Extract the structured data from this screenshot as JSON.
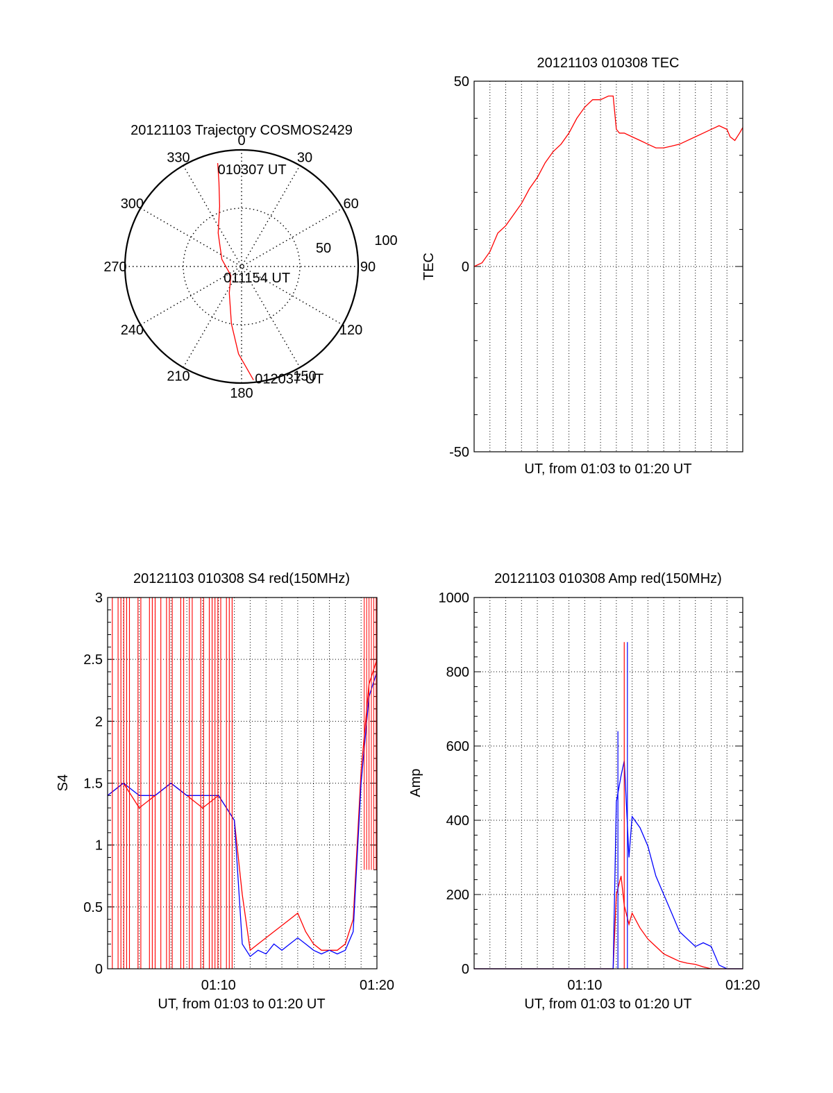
{
  "colors": {
    "red": "#ff0000",
    "blue": "#0000ff",
    "axis": "#000000",
    "grid": "#000000"
  },
  "chart_data": [
    {
      "id": "trajectory",
      "type": "polar",
      "title": "20121103 Trajectory COSMOS2429",
      "angle_labels": [
        "0",
        "30",
        "60",
        "90",
        "120",
        "150",
        "180",
        "210",
        "240",
        "270",
        "300",
        "330"
      ],
      "radial_labels": [
        "50",
        "100"
      ],
      "radial_ring_values": [
        50,
        100
      ],
      "r_max": 100,
      "points": [
        {
          "label": "010307 UT",
          "azimuth": 347,
          "elevation_offset": 91
        },
        {
          "label": "011154 UT",
          "azimuth": 250,
          "elevation_offset": 5
        },
        {
          "label": "012037 UT",
          "azimuth": 174,
          "elevation_offset": 98
        }
      ],
      "track": [
        [
          347,
          91
        ],
        [
          345,
          75
        ],
        [
          340,
          55
        ],
        [
          325,
          35
        ],
        [
          290,
          18
        ],
        [
          230,
          12
        ],
        [
          205,
          25
        ],
        [
          190,
          50
        ],
        [
          182,
          75
        ],
        [
          174,
          98
        ]
      ]
    },
    {
      "id": "tec",
      "type": "line",
      "title": "20121103 010308 TEC",
      "xlabel": "UT, from 01:03 to 01:20 UT",
      "ylabel": "TEC",
      "ylim": [
        -50,
        50
      ],
      "yticks": [
        "50",
        "0",
        "-50"
      ],
      "x_minutes": [
        0,
        17
      ],
      "series": [
        {
          "color": "red",
          "x": [
            0,
            0.5,
            1,
            1.5,
            2,
            2.5,
            3,
            3.5,
            4,
            4.5,
            5,
            5.5,
            6,
            6.5,
            7,
            7.5,
            8,
            8.5,
            8.8,
            9,
            9.2,
            9.5,
            10,
            10.5,
            11,
            11.5,
            12,
            12.5,
            13,
            13.5,
            14,
            14.5,
            15,
            15.5,
            16,
            16.2,
            16.5,
            16.8,
            17
          ],
          "y": [
            0,
            1,
            4,
            9,
            11,
            14,
            17,
            21,
            24,
            28,
            31,
            33,
            36,
            40,
            43,
            45,
            45,
            46,
            46,
            37,
            36,
            36,
            35,
            34,
            33,
            32,
            32,
            32.5,
            33,
            34,
            35,
            36,
            37,
            38,
            37,
            35,
            34,
            36,
            37.5
          ]
        }
      ]
    },
    {
      "id": "s4",
      "type": "line",
      "title": "20121103 010308 S4 red(150MHz)",
      "xlabel": "UT, from 01:03 to 01:20 UT",
      "ylabel": "S4",
      "ylim": [
        0,
        3
      ],
      "yticks": [
        "0",
        "0.5",
        "1",
        "1.5",
        "2",
        "2.5",
        "3"
      ],
      "xticks": [
        "01:10",
        "01:20"
      ],
      "x_minutes": [
        0,
        17
      ],
      "series": [
        {
          "color": "red",
          "x": [
            0,
            1,
            2,
            3,
            4,
            5,
            6,
            7,
            7.5,
            8,
            8.5,
            9,
            9.5,
            10,
            10.5,
            11,
            11.5,
            12,
            12.5,
            13,
            13.5,
            14,
            14.5,
            15,
            15.5,
            16,
            16.5,
            17
          ],
          "y": [
            1.4,
            1.5,
            1.3,
            1.4,
            1.5,
            1.4,
            1.3,
            1.4,
            1.3,
            1.2,
            0.6,
            0.15,
            0.2,
            0.25,
            0.3,
            0.35,
            0.4,
            0.45,
            0.3,
            0.2,
            0.15,
            0.15,
            0.15,
            0.2,
            0.4,
            1.6,
            2.3,
            2.5
          ]
        },
        {
          "color": "blue",
          "x": [
            0,
            1,
            2,
            3,
            4,
            5,
            6,
            7,
            7.5,
            8,
            8.5,
            9,
            9.5,
            10,
            10.5,
            11,
            11.5,
            12,
            12.5,
            13,
            13.5,
            14,
            14.5,
            15,
            15.5,
            16,
            16.5,
            17
          ],
          "y": [
            1.4,
            1.5,
            1.4,
            1.4,
            1.5,
            1.4,
            1.4,
            1.4,
            1.3,
            1.2,
            0.2,
            0.1,
            0.15,
            0.12,
            0.2,
            0.15,
            0.2,
            0.25,
            0.2,
            0.15,
            0.12,
            0.15,
            0.12,
            0.15,
            0.3,
            1.5,
            2.2,
            2.4
          ]
        }
      ]
    },
    {
      "id": "amp",
      "type": "line",
      "title": "20121103 010308 Amp red(150MHz)",
      "xlabel": "UT, from 01:03 to 01:20 UT",
      "ylabel": "Amp",
      "ylim": [
        0,
        1000
      ],
      "yticks": [
        "0",
        "200",
        "400",
        "600",
        "800",
        "1000"
      ],
      "xticks": [
        "01:10",
        "01:20"
      ],
      "x_minutes": [
        0,
        17
      ],
      "series": [
        {
          "color": "red",
          "x": [
            0,
            7,
            8.8,
            9,
            9.3,
            9.5,
            9.8,
            10,
            10.5,
            11,
            11.5,
            12,
            12.5,
            13,
            13.5,
            14,
            14.5,
            15,
            15.5,
            16,
            17
          ],
          "y": [
            0,
            0,
            0,
            200,
            250,
            170,
            120,
            150,
            110,
            80,
            60,
            40,
            30,
            20,
            15,
            12,
            5,
            0,
            0,
            0,
            0
          ]
        },
        {
          "color": "blue",
          "x": [
            0,
            7,
            8.8,
            9,
            9.3,
            9.5,
            9.8,
            10,
            10.5,
            11,
            11.5,
            12,
            12.5,
            13,
            13.5,
            14,
            14.5,
            15,
            15.5,
            16,
            17
          ],
          "y": [
            0,
            0,
            0,
            450,
            520,
            560,
            300,
            410,
            380,
            330,
            250,
            200,
            150,
            100,
            80,
            60,
            70,
            60,
            10,
            0,
            0
          ]
        }
      ]
    }
  ]
}
